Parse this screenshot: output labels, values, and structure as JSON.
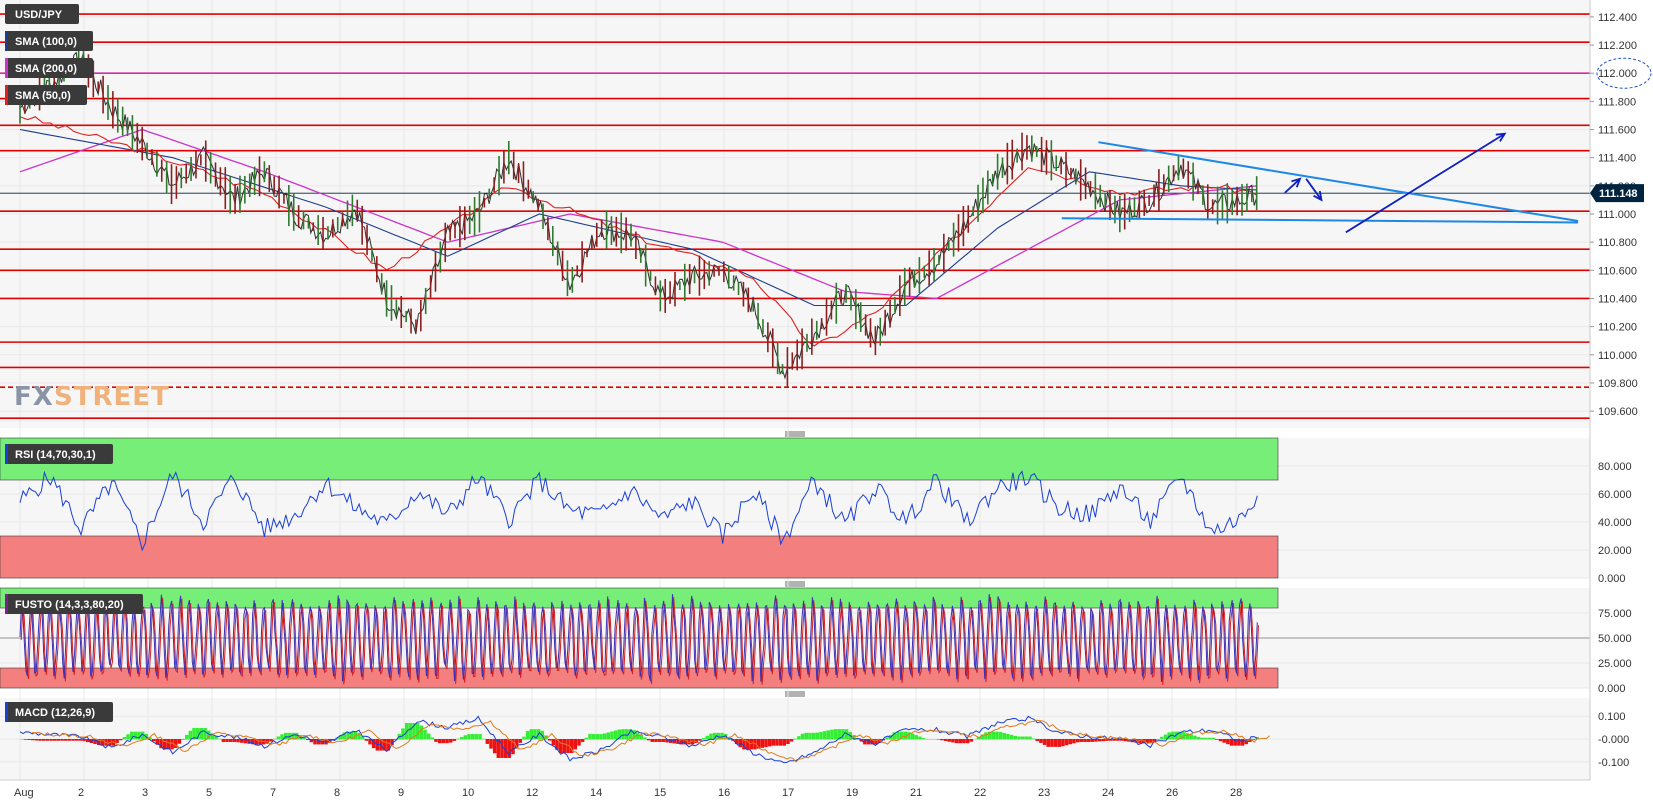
{
  "symbol": "USD/JPY",
  "colors": {
    "price_line": "#00243f",
    "resistance": "#e00000",
    "sma100": "#1a3d8f",
    "sma200": "#cc33cc",
    "sma50": "#e02020",
    "trend": "#1e88e5",
    "arrow": "#1020c0",
    "rsi": "#1a3fd6",
    "overbought_zone": "#77ee77",
    "oversold_zone": "#f47f7f",
    "macd_pos": "#33ee33",
    "macd_neg": "#ee1111",
    "grid": "#e8e8e8"
  },
  "indicators": {
    "sma100": "SMA (100,0)",
    "sma200": "SMA (200,0)",
    "sma50": "SMA (50,0)",
    "rsi": "RSI (14,70,30,1)",
    "fusto": "FUSTO (14,3,3,80,20)",
    "macd": "MACD (12,26,9)"
  },
  "watermark": {
    "part1": "FX",
    "part2": "STREET"
  },
  "chart_data": [
    {
      "type": "line",
      "title": "USD/JPY",
      "x_ticks": [
        "Aug",
        "2",
        "3",
        "5",
        "7",
        "8",
        "9",
        "10",
        "12",
        "14",
        "15",
        "16",
        "17",
        "19",
        "21",
        "22",
        "23",
        "24",
        "26",
        "28"
      ],
      "y_ticks": [
        "112.400",
        "112.200",
        "112.000",
        "111.800",
        "111.600",
        "111.400",
        "111.200",
        "111.000",
        "110.800",
        "110.600",
        "110.400",
        "110.200",
        "110.000",
        "109.800",
        "109.600"
      ],
      "ylim": [
        109.48,
        112.52
      ],
      "last_price": "111.148",
      "last_value": 111.148,
      "sma200_level_label": "112.000",
      "horizontal_levels": [
        112.42,
        112.22,
        112.0,
        111.82,
        111.63,
        111.45,
        111.02,
        110.75,
        110.6,
        110.4,
        110.09,
        109.91,
        109.55
      ],
      "dashed_level": 109.77,
      "price_path": [
        [
          0,
          111.75
        ],
        [
          2,
          112.1
        ],
        [
          3,
          111.75
        ],
        [
          4,
          111.5
        ],
        [
          5,
          111.2
        ],
        [
          6,
          111.4
        ],
        [
          7,
          111.1
        ],
        [
          8,
          111.3
        ],
        [
          9,
          111.0
        ],
        [
          10,
          110.85
        ],
        [
          11,
          111.05
        ],
        [
          12,
          110.4
        ],
        [
          13,
          110.2
        ],
        [
          14,
          110.85
        ],
        [
          15,
          111.0
        ],
        [
          16,
          111.4
        ],
        [
          17,
          111.05
        ],
        [
          18,
          110.5
        ],
        [
          19,
          110.9
        ],
        [
          20,
          110.85
        ],
        [
          21,
          110.4
        ],
        [
          22,
          110.55
        ],
        [
          23,
          110.6
        ],
        [
          24,
          110.35
        ],
        [
          25,
          109.88
        ],
        [
          26,
          110.15
        ],
        [
          27,
          110.45
        ],
        [
          28,
          110.1
        ],
        [
          29,
          110.5
        ],
        [
          30,
          110.65
        ],
        [
          31,
          110.95
        ],
        [
          32,
          111.3
        ],
        [
          33,
          111.48
        ],
        [
          34,
          111.35
        ],
        [
          35,
          111.2
        ],
        [
          36,
          111.0
        ],
        [
          37,
          111.1
        ],
        [
          38,
          111.35
        ],
        [
          39,
          111.05
        ],
        [
          40,
          111.1
        ],
        [
          40.5,
          111.15
        ]
      ],
      "sma50_path": [
        [
          0,
          111.7
        ],
        [
          4,
          111.45
        ],
        [
          8,
          111.15
        ],
        [
          12,
          110.6
        ],
        [
          16,
          111.2
        ],
        [
          20,
          110.85
        ],
        [
          24,
          110.55
        ],
        [
          26,
          110.05
        ],
        [
          28,
          110.3
        ],
        [
          30,
          110.7
        ],
        [
          33,
          111.35
        ],
        [
          36,
          111.15
        ],
        [
          39,
          111.2
        ],
        [
          40.5,
          111.15
        ]
      ],
      "sma100_path": [
        [
          0,
          111.6
        ],
        [
          5,
          111.4
        ],
        [
          10,
          111.05
        ],
        [
          14,
          110.7
        ],
        [
          17,
          111.0
        ],
        [
          22,
          110.75
        ],
        [
          26,
          110.35
        ],
        [
          29,
          110.35
        ],
        [
          32,
          110.9
        ],
        [
          35,
          111.3
        ],
        [
          38,
          111.2
        ],
        [
          40.5,
          111.17
        ]
      ],
      "sma200_path": [
        [
          0,
          111.3
        ],
        [
          4,
          111.6
        ],
        [
          8,
          111.3
        ],
        [
          14,
          110.8
        ],
        [
          18,
          111.0
        ],
        [
          23,
          110.8
        ],
        [
          27,
          110.45
        ],
        [
          30,
          110.4
        ],
        [
          33,
          110.75
        ],
        [
          36,
          111.1
        ],
        [
          40.5,
          111.2
        ]
      ],
      "trend_lines": [
        {
          "from": [
            35.3,
            111.51
          ],
          "to": [
            51,
            110.95
          ]
        },
        {
          "from": [
            34.1,
            110.97
          ],
          "to": [
            51,
            110.94
          ]
        }
      ],
      "arrows": [
        {
          "from": [
            43.4,
            110.87
          ],
          "to": [
            48.6,
            111.57
          ]
        },
        {
          "from": [
            41.4,
            111.15
          ],
          "to": [
            41.9,
            111.25
          ]
        },
        {
          "from": [
            42.1,
            111.25
          ],
          "to": [
            42.6,
            111.1
          ]
        }
      ]
    },
    {
      "type": "line",
      "title": "RSI (14,70,30,1)",
      "y_ticks": [
        "80.000",
        "60.000",
        "40.000",
        "20.000",
        "0.000"
      ],
      "ylim": [
        0,
        100
      ],
      "overbought": 70,
      "oversold": 30,
      "rsi_path": [
        [
          0,
          55
        ],
        [
          1,
          72
        ],
        [
          2,
          35
        ],
        [
          3,
          68
        ],
        [
          4,
          25
        ],
        [
          5,
          74
        ],
        [
          6,
          40
        ],
        [
          7,
          72
        ],
        [
          8,
          35
        ],
        [
          9,
          45
        ],
        [
          10,
          68
        ],
        [
          11,
          50
        ],
        [
          12,
          38
        ],
        [
          13,
          62
        ],
        [
          14,
          45
        ],
        [
          15,
          72
        ],
        [
          16,
          42
        ],
        [
          17,
          70
        ],
        [
          18,
          48
        ],
        [
          19,
          45
        ],
        [
          20,
          63
        ],
        [
          21,
          42
        ],
        [
          22,
          55
        ],
        [
          23,
          30
        ],
        [
          24,
          62
        ],
        [
          25,
          27
        ],
        [
          26,
          70
        ],
        [
          27,
          38
        ],
        [
          28,
          65
        ],
        [
          29,
          40
        ],
        [
          30,
          70
        ],
        [
          31,
          40
        ],
        [
          32,
          65
        ],
        [
          33,
          72
        ],
        [
          34,
          50
        ],
        [
          35,
          45
        ],
        [
          36,
          65
        ],
        [
          37,
          40
        ],
        [
          38,
          73
        ],
        [
          39,
          33
        ],
        [
          40,
          43
        ],
        [
          40.5,
          60
        ]
      ]
    },
    {
      "type": "line",
      "title": "FUSTO (14,3,3,80,20)",
      "y_ticks": [
        "75.000",
        "50.000",
        "25.000",
        "0.000"
      ],
      "ylim": [
        0,
        100
      ],
      "overbought": 80,
      "oversold": 20,
      "oscillations": 140,
      "last_value": 75
    },
    {
      "type": "bar",
      "title": "MACD (12,26,9)",
      "y_ticks": [
        "0.100",
        "-0.000",
        "-0.100"
      ],
      "ylim": [
        -0.18,
        0.18
      ],
      "macd_path": [
        [
          0,
          0.03
        ],
        [
          2,
          0.01
        ],
        [
          3,
          -0.04
        ],
        [
          4,
          0.02
        ],
        [
          5,
          -0.06
        ],
        [
          6,
          0.03
        ],
        [
          7,
          0.01
        ],
        [
          8,
          -0.03
        ],
        [
          9,
          0.02
        ],
        [
          10,
          -0.02
        ],
        [
          11,
          0.04
        ],
        [
          12,
          -0.05
        ],
        [
          13,
          0.08
        ],
        [
          14,
          0.05
        ],
        [
          15,
          0.09
        ],
        [
          16,
          -0.06
        ],
        [
          17,
          0.02
        ],
        [
          18,
          -0.09
        ],
        [
          19,
          -0.05
        ],
        [
          20,
          0.03
        ],
        [
          21,
          0.01
        ],
        [
          22,
          -0.03
        ],
        [
          23,
          0.02
        ],
        [
          24,
          -0.06
        ],
        [
          25,
          -0.11
        ],
        [
          26,
          -0.06
        ],
        [
          27,
          0.02
        ],
        [
          28,
          -0.02
        ],
        [
          29,
          0.04
        ],
        [
          30,
          0.04
        ],
        [
          31,
          0.01
        ],
        [
          32,
          0.07
        ],
        [
          33,
          0.09
        ],
        [
          34,
          0.03
        ],
        [
          35,
          0.01
        ],
        [
          36,
          0.0
        ],
        [
          37,
          -0.03
        ],
        [
          38,
          0.03
        ],
        [
          39,
          0.04
        ],
        [
          40,
          -0.01
        ],
        [
          40.5,
          0.01
        ]
      ]
    }
  ]
}
